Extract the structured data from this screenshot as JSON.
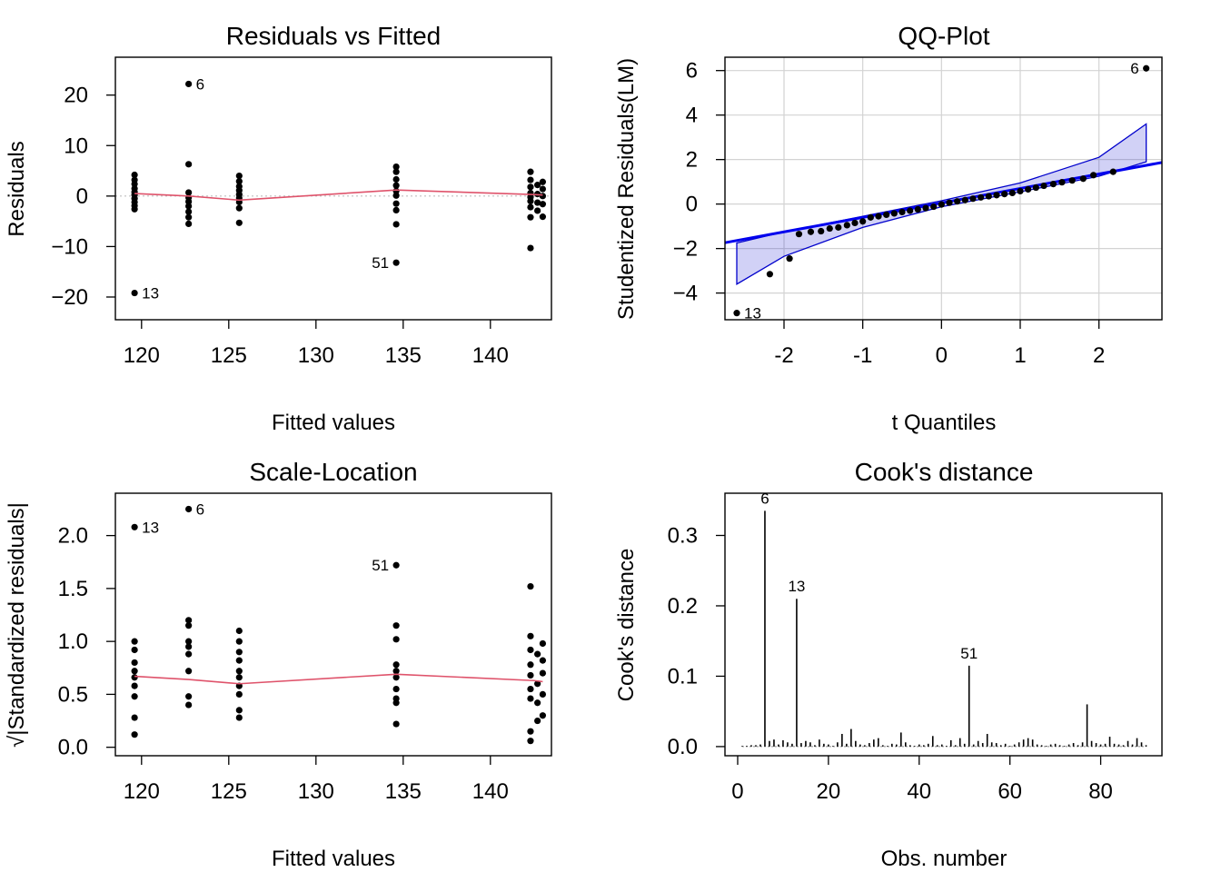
{
  "chart_data": [
    {
      "type": "scatter",
      "title": "Residuals vs Fitted",
      "xlabel": "Fitted values",
      "ylabel": "Residuals",
      "xlim": [
        118.5,
        143.5
      ],
      "ylim": [
        -24.5,
        27.5
      ],
      "xticks": [
        120,
        125,
        130,
        135,
        140
      ],
      "yticks": [
        -20,
        -10,
        0,
        10,
        20
      ],
      "grid": false,
      "reference_line": {
        "y": 0,
        "style": "dotted",
        "color": "#bebebe"
      },
      "smoother": {
        "color": "#df536b",
        "x": [
          119.6,
          122.7,
          125.6,
          134.6,
          142.5,
          143.0
        ],
        "y": [
          0.5,
          0.0,
          -0.8,
          1.2,
          0.3,
          0.2
        ]
      },
      "points": [
        [
          119.6,
          4.2
        ],
        [
          119.6,
          3.2
        ],
        [
          119.6,
          2.4
        ],
        [
          119.6,
          1.5
        ],
        [
          119.6,
          0.8
        ],
        [
          119.6,
          0.2
        ],
        [
          119.6,
          -0.5
        ],
        [
          119.6,
          -1.2
        ],
        [
          119.6,
          -1.9
        ],
        [
          119.6,
          -2.6
        ],
        [
          119.6,
          -19.2
        ],
        [
          122.7,
          22.2
        ],
        [
          122.7,
          6.3
        ],
        [
          122.7,
          0.7
        ],
        [
          122.7,
          -0.3
        ],
        [
          122.7,
          -1.1
        ],
        [
          122.7,
          -2.0
        ],
        [
          122.7,
          -3.1
        ],
        [
          122.7,
          -4.2
        ],
        [
          122.7,
          -5.5
        ],
        [
          125.6,
          4.0
        ],
        [
          125.6,
          2.9
        ],
        [
          125.6,
          1.9
        ],
        [
          125.6,
          1.1
        ],
        [
          125.6,
          0.3
        ],
        [
          125.6,
          -0.4
        ],
        [
          125.6,
          -1.2
        ],
        [
          125.6,
          -2.4
        ],
        [
          125.6,
          -5.3
        ],
        [
          134.6,
          5.8
        ],
        [
          134.6,
          4.8
        ],
        [
          134.6,
          3.3
        ],
        [
          134.6,
          2.1
        ],
        [
          134.6,
          1.0
        ],
        [
          134.6,
          0.1
        ],
        [
          134.6,
          -1.5
        ],
        [
          134.6,
          -2.8
        ],
        [
          134.6,
          -5.6
        ],
        [
          134.6,
          -13.2
        ],
        [
          142.3,
          4.8
        ],
        [
          142.3,
          3.2
        ],
        [
          142.3,
          1.8
        ],
        [
          142.3,
          0.6
        ],
        [
          142.3,
          -0.2
        ],
        [
          142.3,
          -1.0
        ],
        [
          142.3,
          -2.2
        ],
        [
          142.3,
          -4.2
        ],
        [
          142.3,
          -10.3
        ],
        [
          142.7,
          2.2
        ],
        [
          142.7,
          0.4
        ],
        [
          142.7,
          -1.3
        ],
        [
          142.7,
          -2.9
        ],
        [
          143.0,
          2.8
        ],
        [
          143.0,
          1.4
        ],
        [
          143.0,
          0.0
        ],
        [
          143.0,
          -1.6
        ],
        [
          143.0,
          -4.1
        ]
      ],
      "point_labels": [
        {
          "text": "6",
          "x": 122.7,
          "y": 22.2,
          "side": "right"
        },
        {
          "text": "13",
          "x": 119.6,
          "y": -19.2,
          "side": "right"
        },
        {
          "text": "51",
          "x": 134.6,
          "y": -13.2,
          "side": "left"
        }
      ]
    },
    {
      "type": "scatter",
      "title": "QQ-Plot",
      "xlabel": "t Quantiles",
      "ylabel": "Studentized Residuals(LM)",
      "xlim": [
        -2.75,
        2.8
      ],
      "ylim": [
        -5.2,
        6.6
      ],
      "xticks": [
        -2,
        -1,
        0,
        1,
        2
      ],
      "yticks": [
        -4,
        -2,
        0,
        2,
        4,
        6
      ],
      "grid": true,
      "reference_line": {
        "color": "#0000ee",
        "intercept": 0.05,
        "slope": 0.65
      },
      "envelope": {
        "color": "#0000cc",
        "x": [
          -2.6,
          -2.0,
          -1.0,
          0.0,
          1.0,
          2.0,
          2.6
        ],
        "lower": [
          -3.6,
          -2.35,
          -1.05,
          -0.12,
          0.55,
          1.25,
          1.9
        ],
        "upper": [
          -1.75,
          -1.25,
          -0.55,
          0.15,
          0.95,
          2.1,
          3.6
        ]
      },
      "points": [
        [
          -2.6,
          -4.9
        ],
        [
          -2.18,
          -3.15
        ],
        [
          -1.93,
          -2.45
        ],
        [
          -1.81,
          -1.35
        ],
        [
          -1.66,
          -1.25
        ],
        [
          -1.53,
          -1.22
        ],
        [
          -1.42,
          -1.1
        ],
        [
          -1.31,
          -1.05
        ],
        [
          -1.2,
          -0.95
        ],
        [
          -1.1,
          -0.85
        ],
        [
          -1.0,
          -0.78
        ],
        [
          -0.9,
          -0.6
        ],
        [
          -0.8,
          -0.55
        ],
        [
          -0.7,
          -0.48
        ],
        [
          -0.6,
          -0.42
        ],
        [
          -0.5,
          -0.36
        ],
        [
          -0.4,
          -0.3
        ],
        [
          -0.3,
          -0.24
        ],
        [
          -0.2,
          -0.18
        ],
        [
          -0.1,
          -0.12
        ],
        [
          0.0,
          -0.02
        ],
        [
          0.1,
          0.06
        ],
        [
          0.2,
          0.12
        ],
        [
          0.3,
          0.18
        ],
        [
          0.4,
          0.24
        ],
        [
          0.5,
          0.3
        ],
        [
          0.6,
          0.35
        ],
        [
          0.7,
          0.4
        ],
        [
          0.8,
          0.45
        ],
        [
          0.9,
          0.5
        ],
        [
          1.0,
          0.58
        ],
        [
          1.1,
          0.66
        ],
        [
          1.2,
          0.74
        ],
        [
          1.3,
          0.82
        ],
        [
          1.42,
          0.9
        ],
        [
          1.53,
          0.98
        ],
        [
          1.66,
          1.06
        ],
        [
          1.8,
          1.14
        ],
        [
          1.93,
          1.3
        ],
        [
          2.18,
          1.45
        ],
        [
          2.6,
          6.1
        ]
      ],
      "point_labels": [
        {
          "text": "6",
          "x": 2.6,
          "y": 6.1,
          "side": "left"
        },
        {
          "text": "13",
          "x": -2.6,
          "y": -4.9,
          "side": "right"
        }
      ]
    },
    {
      "type": "scatter",
      "title": "Scale-Location",
      "xlabel": "Fitted values",
      "ylabel": "√|Standardized residuals|",
      "xlim": [
        118.5,
        143.5
      ],
      "ylim": [
        -0.08,
        2.4
      ],
      "xticks": [
        120,
        125,
        130,
        135,
        140
      ],
      "yticks": [
        0.0,
        0.5,
        1.0,
        1.5,
        2.0
      ],
      "ytick_labels": [
        "0.0",
        "0.5",
        "1.0",
        "1.5",
        "2.0"
      ],
      "grid": false,
      "smoother": {
        "color": "#df536b",
        "x": [
          119.6,
          122.7,
          125.6,
          134.6,
          142.5,
          143.0
        ],
        "y": [
          0.67,
          0.64,
          0.6,
          0.69,
          0.63,
          0.62
        ]
      },
      "points": [
        [
          119.6,
          2.08
        ],
        [
          119.6,
          1.0
        ],
        [
          119.6,
          0.92
        ],
        [
          119.6,
          0.8
        ],
        [
          119.6,
          0.72
        ],
        [
          119.6,
          0.66
        ],
        [
          119.6,
          0.58
        ],
        [
          119.6,
          0.48
        ],
        [
          119.6,
          0.28
        ],
        [
          119.6,
          0.12
        ],
        [
          122.7,
          2.25
        ],
        [
          122.7,
          1.2
        ],
        [
          122.7,
          1.15
        ],
        [
          122.7,
          1.0
        ],
        [
          122.7,
          0.95
        ],
        [
          122.7,
          0.88
        ],
        [
          122.7,
          0.72
        ],
        [
          122.7,
          0.48
        ],
        [
          122.7,
          0.4
        ],
        [
          125.6,
          1.1
        ],
        [
          125.6,
          1.0
        ],
        [
          125.6,
          0.9
        ],
        [
          125.6,
          0.82
        ],
        [
          125.6,
          0.72
        ],
        [
          125.6,
          0.66
        ],
        [
          125.6,
          0.58
        ],
        [
          125.6,
          0.5
        ],
        [
          125.6,
          0.35
        ],
        [
          125.6,
          0.28
        ],
        [
          134.6,
          1.72
        ],
        [
          134.6,
          1.15
        ],
        [
          134.6,
          1.02
        ],
        [
          134.6,
          0.78
        ],
        [
          134.6,
          0.72
        ],
        [
          134.6,
          0.66
        ],
        [
          134.6,
          0.55
        ],
        [
          134.6,
          0.46
        ],
        [
          134.6,
          0.42
        ],
        [
          134.6,
          0.22
        ],
        [
          142.3,
          1.52
        ],
        [
          142.3,
          1.05
        ],
        [
          142.3,
          0.92
        ],
        [
          142.3,
          0.78
        ],
        [
          142.3,
          0.68
        ],
        [
          142.3,
          0.55
        ],
        [
          142.3,
          0.46
        ],
        [
          142.3,
          0.15
        ],
        [
          142.3,
          0.06
        ],
        [
          142.7,
          0.88
        ],
        [
          142.7,
          0.6
        ],
        [
          142.7,
          0.42
        ],
        [
          142.7,
          0.25
        ],
        [
          143.0,
          0.98
        ],
        [
          143.0,
          0.82
        ],
        [
          143.0,
          0.7
        ],
        [
          143.0,
          0.5
        ],
        [
          143.0,
          0.3
        ]
      ],
      "point_labels": [
        {
          "text": "13",
          "x": 119.6,
          "y": 2.08,
          "side": "right"
        },
        {
          "text": "6",
          "x": 122.7,
          "y": 2.25,
          "side": "right"
        },
        {
          "text": "51",
          "x": 134.6,
          "y": 1.72,
          "side": "left"
        }
      ]
    },
    {
      "type": "bar",
      "title": "Cook's distance",
      "xlabel": "Obs. number",
      "ylabel": "Cook's distance",
      "xlim": [
        -2.8,
        93.5
      ],
      "ylim": [
        -0.013,
        0.36
      ],
      "xticks": [
        0,
        20,
        40,
        60,
        80
      ],
      "yticks": [
        0.0,
        0.1,
        0.2,
        0.3
      ],
      "ytick_labels": [
        "0.0",
        "0.1",
        "0.2",
        "0.3"
      ],
      "grid": false,
      "x": [
        1,
        2,
        3,
        4,
        5,
        6,
        7,
        8,
        9,
        10,
        11,
        12,
        13,
        14,
        15,
        16,
        17,
        18,
        19,
        20,
        21,
        22,
        23,
        24,
        25,
        26,
        27,
        28,
        29,
        30,
        31,
        32,
        33,
        34,
        35,
        36,
        37,
        38,
        39,
        40,
        41,
        42,
        43,
        44,
        45,
        46,
        47,
        48,
        49,
        50,
        51,
        52,
        53,
        54,
        55,
        56,
        57,
        58,
        59,
        60,
        61,
        62,
        63,
        64,
        65,
        66,
        67,
        68,
        69,
        70,
        71,
        72,
        73,
        74,
        75,
        76,
        77,
        78,
        79,
        80,
        81,
        82,
        83,
        84,
        85,
        86,
        87,
        88,
        89,
        90
      ],
      "values": [
        0.001,
        0.001,
        0.002,
        0.002,
        0.003,
        0.335,
        0.008,
        0.01,
        0.003,
        0.009,
        0.006,
        0.004,
        0.21,
        0.005,
        0.008,
        0.006,
        0.002,
        0.01,
        0.004,
        0.003,
        0.001,
        0.006,
        0.018,
        0.004,
        0.025,
        0.008,
        0.003,
        0.002,
        0.005,
        0.01,
        0.012,
        0.002,
        0.001,
        0.004,
        0.003,
        0.02,
        0.006,
        0.002,
        0.001,
        0.003,
        0.002,
        0.004,
        0.015,
        0.002,
        0.003,
        0.001,
        0.009,
        0.002,
        0.012,
        0.004,
        0.115,
        0.003,
        0.008,
        0.005,
        0.018,
        0.006,
        0.005,
        0.002,
        0.004,
        0.001,
        0.003,
        0.006,
        0.01,
        0.012,
        0.01,
        0.003,
        0.002,
        0.001,
        0.003,
        0.004,
        0.002,
        0.001,
        0.003,
        0.005,
        0.002,
        0.006,
        0.06,
        0.008,
        0.005,
        0.003,
        0.004,
        0.014,
        0.004,
        0.003,
        0.002,
        0.008,
        0.003,
        0.012,
        0.006,
        0.002
      ],
      "point_labels": [
        {
          "text": "6",
          "x": 6,
          "y": 0.335
        },
        {
          "text": "13",
          "x": 13,
          "y": 0.21
        },
        {
          "text": "51",
          "x": 51,
          "y": 0.115
        }
      ]
    }
  ]
}
